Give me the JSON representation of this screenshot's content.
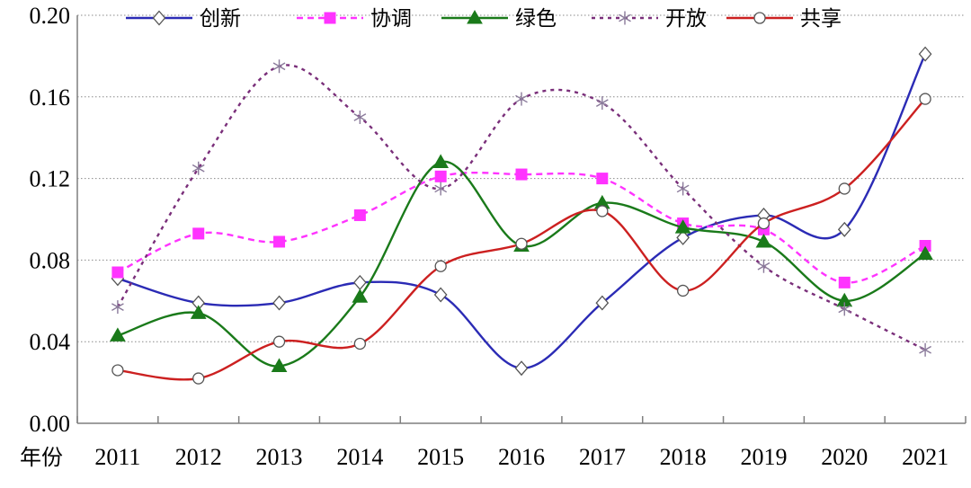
{
  "chart_data": {
    "type": "line",
    "xlabel": "年份",
    "ylabel": "",
    "title": "",
    "categories": [
      "2011",
      "2012",
      "2013",
      "2014",
      "2015",
      "2016",
      "2017",
      "2018",
      "2019",
      "2020",
      "2021"
    ],
    "ylim": [
      0,
      0.2
    ],
    "yticks": [
      "0.00",
      "0.04",
      "0.08",
      "0.12",
      "0.16",
      "0.20"
    ],
    "grid": "horizontal dotted",
    "legend_position": "top",
    "series": [
      {
        "name": "创新",
        "color": "#2b2bb5",
        "marker": "diamond",
        "dash": "solid",
        "values": [
          0.071,
          0.059,
          0.059,
          0.069,
          0.063,
          0.027,
          0.059,
          0.091,
          0.102,
          0.095,
          0.181
        ]
      },
      {
        "name": "协调",
        "color": "#ff33ff",
        "marker": "square",
        "dash": "dashed",
        "values": [
          0.074,
          0.093,
          0.089,
          0.102,
          0.121,
          0.122,
          0.12,
          0.098,
          0.095,
          0.069,
          0.087
        ]
      },
      {
        "name": "绿色",
        "color": "#1a7a1a",
        "marker": "triangle",
        "dash": "solid",
        "values": [
          0.043,
          0.054,
          0.028,
          0.062,
          0.128,
          0.087,
          0.108,
          0.096,
          0.089,
          0.06,
          0.083
        ]
      },
      {
        "name": "开放",
        "color": "#7a2f7a",
        "marker": "asterisk",
        "dash": "dotted",
        "values": [
          0.057,
          0.125,
          0.175,
          0.15,
          0.115,
          0.159,
          0.157,
          0.115,
          0.077,
          0.056,
          0.036
        ]
      },
      {
        "name": "共享",
        "color": "#cc2020",
        "marker": "circle",
        "dash": "solid",
        "values": [
          0.026,
          0.022,
          0.04,
          0.039,
          0.077,
          0.088,
          0.104,
          0.065,
          0.098,
          0.115,
          0.159
        ]
      }
    ]
  }
}
